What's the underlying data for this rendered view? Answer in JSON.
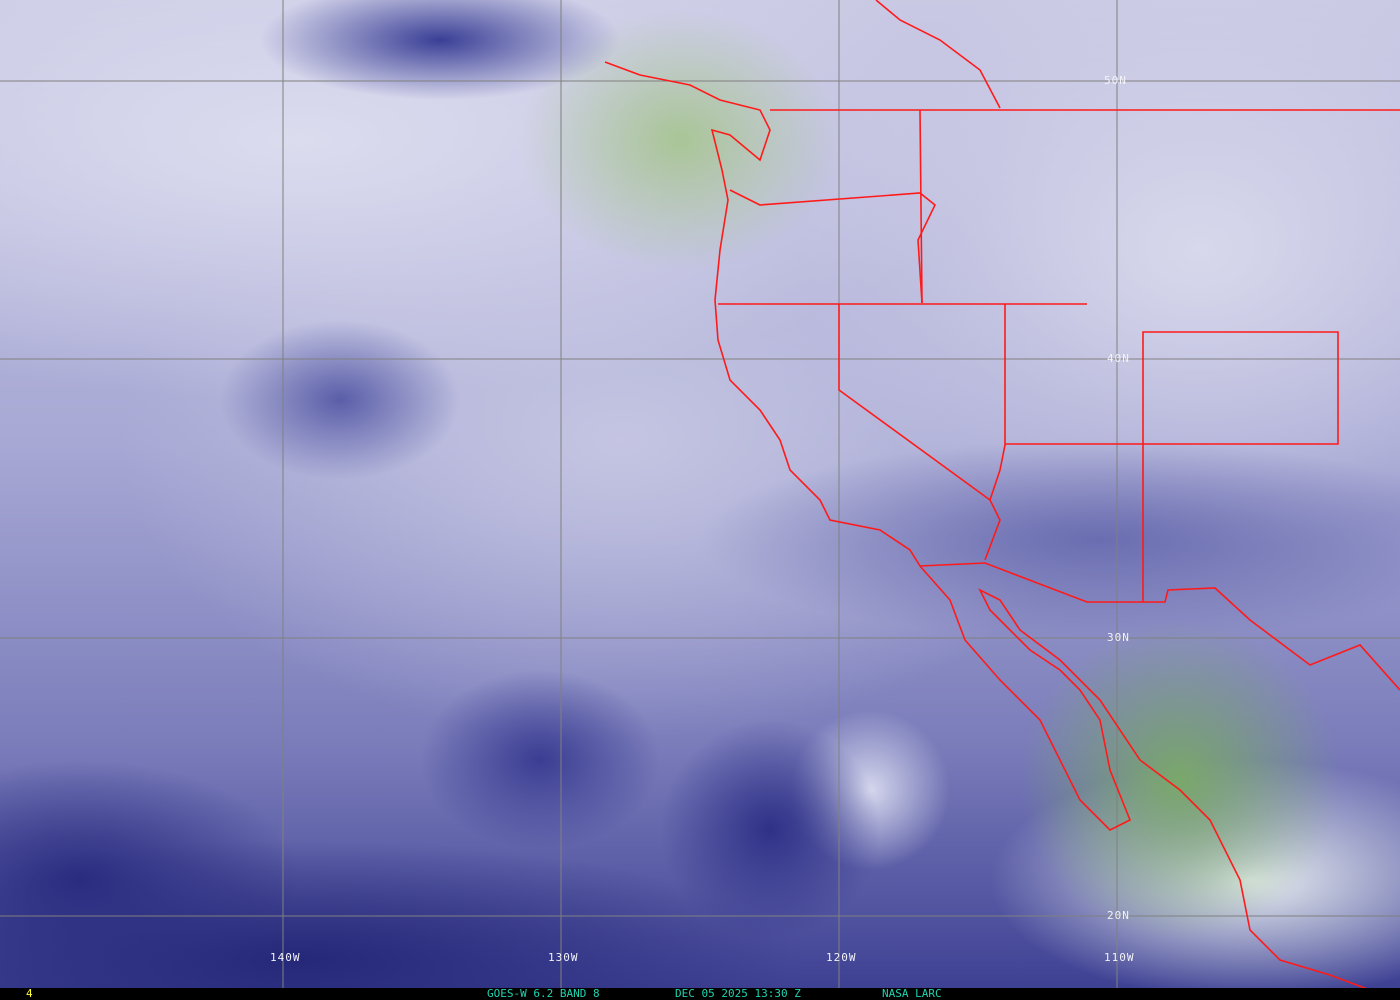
{
  "map": {
    "latitude_labels": [
      "50N",
      "40N",
      "30N",
      "20N"
    ],
    "longitude_labels": [
      "140W",
      "130W",
      "120W",
      "110W"
    ],
    "colors": {
      "border": "#ff1a1a",
      "grid": "#808080",
      "dry": "#2a2c80",
      "moist": "#ffffff",
      "cloud_green": "#7aa86a"
    }
  },
  "status_bar": {
    "frame_number": "4",
    "satellite_band": "GOES-W 6.2 BAND 8",
    "datetime": "DEC 05 2025 13:30 Z",
    "credit": "NASA LARC",
    "frame_color": "#ffff33",
    "text_color": "#1fd3b0"
  }
}
